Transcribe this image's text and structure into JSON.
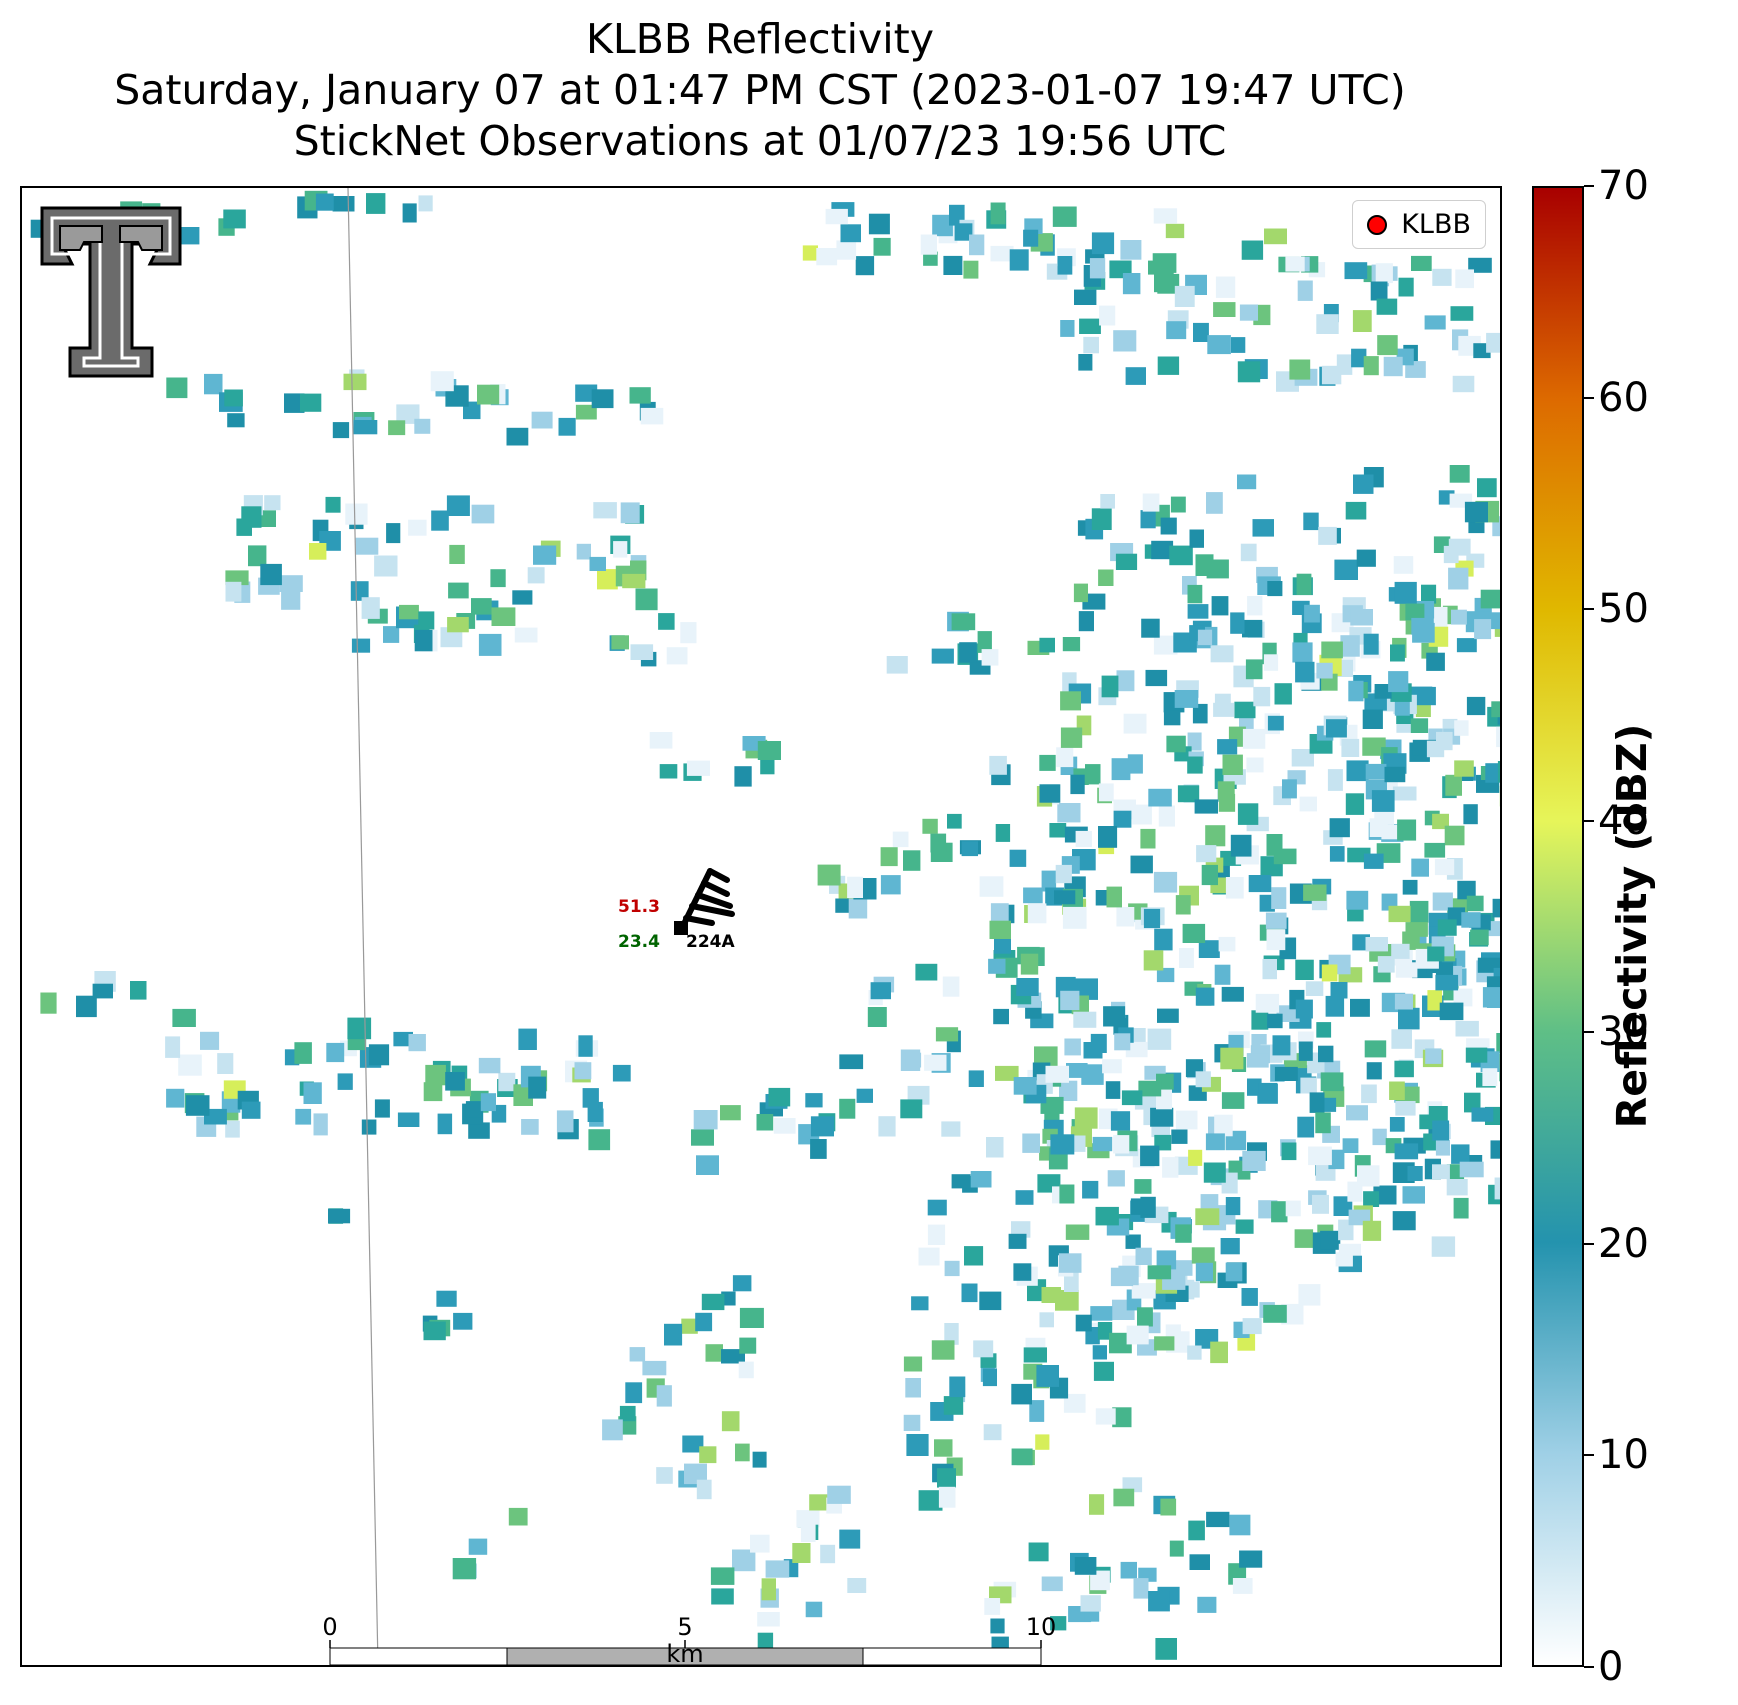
{
  "title": {
    "line1": "KLBB Reflectivity",
    "line2": "Saturday, January 07 at 01:47 PM CST (2023-01-07 19:47 UTC)",
    "line3": "StickNet Observations at 01/07/23 19:56 UTC"
  },
  "legend": {
    "label": "KLBB",
    "marker_color": "#ff0000"
  },
  "logo": {
    "name": "texas-tech-double-t-logo",
    "text": "TT"
  },
  "station": {
    "id": "224A",
    "temperature": "51.3",
    "dewpoint": "23.4",
    "temp_color": "#c00000",
    "dew_color": "#006400"
  },
  "scalebar": {
    "ticks": [
      "0",
      "5",
      "10"
    ],
    "unit": "km"
  },
  "colorbar": {
    "title": "Reflectivity (dBZ)",
    "min": 0,
    "max": 70,
    "ticks": [
      "0",
      "10",
      "20",
      "30",
      "40",
      "50",
      "60",
      "70"
    ],
    "stops": [
      "#ffffff",
      "#9fd0e6",
      "#2493ae",
      "#5fbf86",
      "#e6f55a",
      "#e0b800",
      "#dd6a00",
      "#a80000"
    ]
  }
}
